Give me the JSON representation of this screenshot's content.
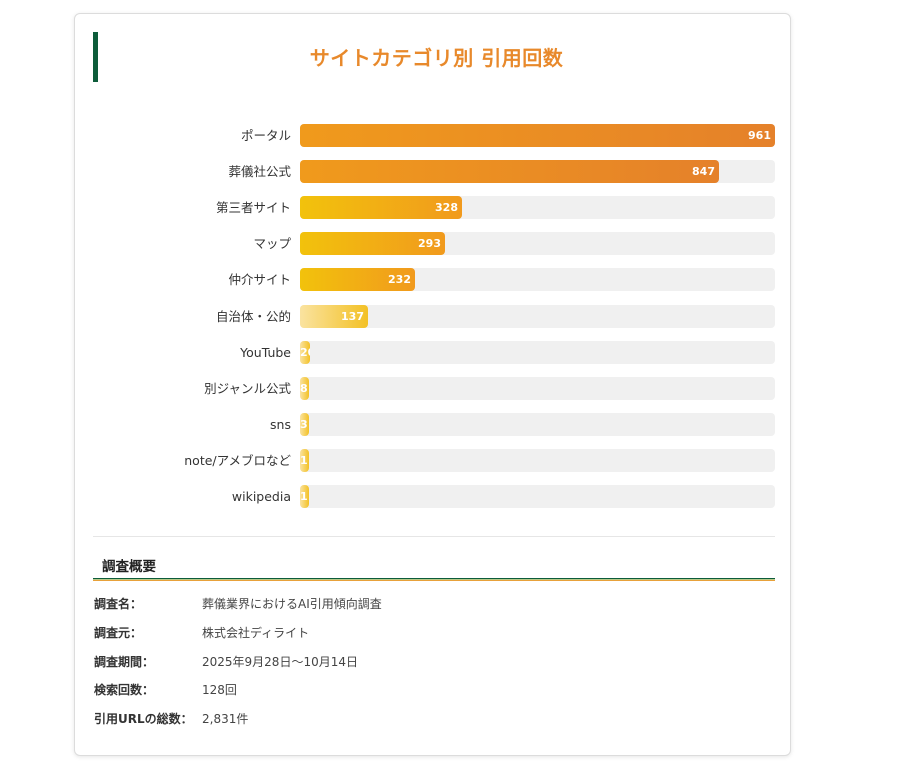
{
  "chart_data": {
    "type": "bar",
    "orientation": "horizontal",
    "title": "サイトカテゴリ別 引用回数",
    "categories": [
      "ポータル",
      "葬儀社公式",
      "第三者サイト",
      "マップ",
      "仲介サイト",
      "自治体・公的",
      "YouTube",
      "別ジャンル公式",
      "sns",
      "note/アメブロなど",
      "wikipedia"
    ],
    "values": [
      961,
      847,
      328,
      293,
      232,
      137,
      20,
      8,
      3,
      1,
      1
    ],
    "xlim": [
      0,
      961
    ],
    "grid": false,
    "legend": "none",
    "colors": {
      "high_start": "#f09a1c",
      "high_end": "#e5812a",
      "mid_start": "#f2c20c",
      "mid_end": "#f19a1d",
      "low_start": "#fae3a0",
      "low_end": "#f3c125",
      "track": "#f0f0f0"
    }
  },
  "summary": {
    "heading": "調査概要",
    "items": [
      {
        "key": "調査名：",
        "value": "葬儀業界におけるAI引用傾向調査"
      },
      {
        "key": "調査元：",
        "value": "株式会社ディライト"
      },
      {
        "key": "調査期間：",
        "value": "2025年9月28日〜10月14日"
      },
      {
        "key": "検索回数：",
        "value": "128回"
      },
      {
        "key": "引用URLの総数：",
        "value": "2,831件"
      }
    ]
  },
  "colors": {
    "title": "#e8892b",
    "accent": "#0d5c3a"
  }
}
